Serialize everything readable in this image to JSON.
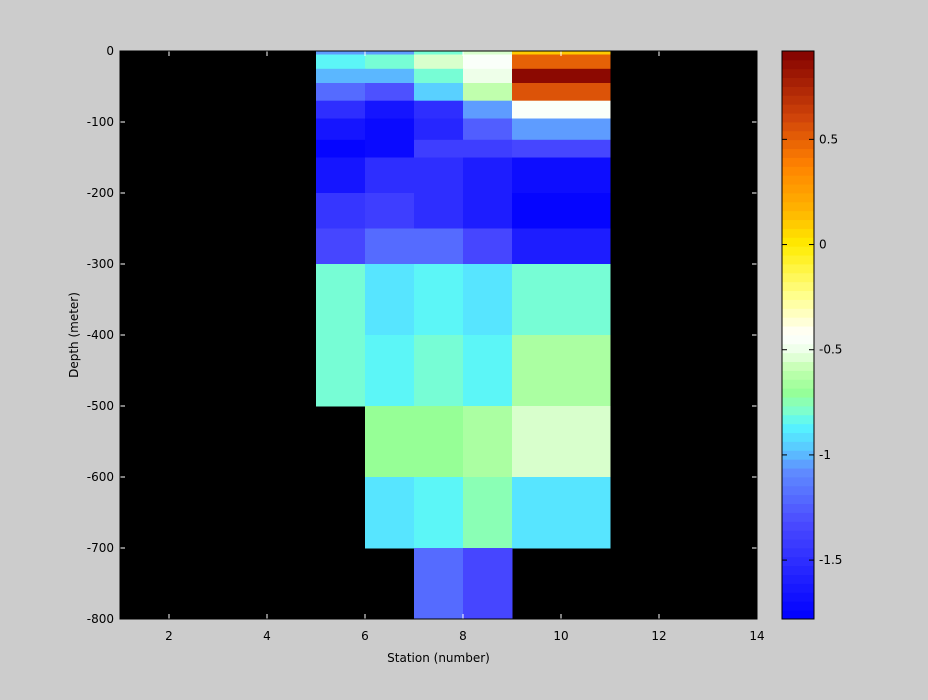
{
  "chart_data": {
    "type": "heatmap",
    "title": "",
    "xlabel": "Station (number)",
    "ylabel": "Depth (meter)",
    "xlim": [
      1,
      14
    ],
    "ylim": [
      -800,
      0
    ],
    "xticks": [
      2,
      4,
      6,
      8,
      10,
      12,
      14
    ],
    "yticks": [
      0,
      -100,
      -200,
      -300,
      -400,
      -500,
      -600,
      -700,
      -800
    ],
    "background_color": "#000000",
    "colormap": "jet-like with white band near -0.45",
    "colorbar": {
      "range": [
        -1.78,
        0.92
      ],
      "ticks": [
        0.5,
        0,
        -0.5,
        -1,
        -1.5
      ],
      "tick_labels": [
        "0.5",
        "0",
        "-0.5",
        "-1",
        "-1.5"
      ]
    },
    "columns": [
      {
        "x0": 5,
        "x1": 6
      },
      {
        "x0": 6,
        "x1": 7
      },
      {
        "x0": 7,
        "x1": 8
      },
      {
        "x0": 8,
        "x1": 9
      },
      {
        "x0": 9,
        "x1": 11
      }
    ],
    "rows": [
      {
        "y0": -5,
        "y1": 0,
        "depth": 0
      },
      {
        "y0": -25,
        "y1": -5,
        "depth": -15
      },
      {
        "y0": -45,
        "y1": -25,
        "depth": -35
      },
      {
        "y0": -70,
        "y1": -45,
        "depth": -60
      },
      {
        "y0": -95,
        "y1": -70,
        "depth": -80
      },
      {
        "y0": -125,
        "y1": -95,
        "depth": -110
      },
      {
        "y0": -150,
        "y1": -125,
        "depth": -140
      },
      {
        "y0": -200,
        "y1": -150,
        "depth": -175
      },
      {
        "y0": -250,
        "y1": -200,
        "depth": -225
      },
      {
        "y0": -300,
        "y1": -250,
        "depth": -275
      },
      {
        "y0": -400,
        "y1": -300,
        "depth": -350
      },
      {
        "y0": -500,
        "y1": -400,
        "depth": -450
      },
      {
        "y0": -600,
        "y1": -500,
        "depth": -550
      },
      {
        "y0": -700,
        "y1": -600,
        "depth": -650
      },
      {
        "y0": -800,
        "y1": -700,
        "depth": -750
      }
    ],
    "values": [
      [
        -1.05,
        -1.05,
        -0.8,
        -0.55,
        0.1
      ],
      [
        -0.85,
        -0.8,
        -0.55,
        -0.45,
        0.5
      ],
      [
        -1.0,
        -1.0,
        -0.8,
        -0.5,
        0.88
      ],
      [
        -1.2,
        -1.3,
        -0.95,
        -0.6,
        0.55
      ],
      [
        -1.5,
        -1.65,
        -1.5,
        -1.05,
        -0.45
      ],
      [
        -1.65,
        -1.72,
        -1.55,
        -1.25,
        -1.05
      ],
      [
        -1.75,
        -1.72,
        -1.4,
        -1.4,
        -1.35
      ],
      [
        -1.65,
        -1.5,
        -1.5,
        -1.6,
        -1.7
      ],
      [
        -1.45,
        -1.4,
        -1.5,
        -1.6,
        -1.75
      ],
      [
        -1.35,
        -1.2,
        -1.2,
        -1.35,
        -1.6
      ],
      [
        -0.8,
        -0.9,
        -0.85,
        -0.9,
        -0.8
      ],
      [
        -0.8,
        -0.85,
        -0.8,
        -0.85,
        -0.65
      ],
      [
        null,
        -0.7,
        -0.7,
        -0.65,
        -0.55
      ],
      [
        null,
        -0.9,
        -0.85,
        -0.75,
        -0.9
      ],
      [
        null,
        null,
        -1.2,
        -1.35,
        null
      ]
    ]
  }
}
